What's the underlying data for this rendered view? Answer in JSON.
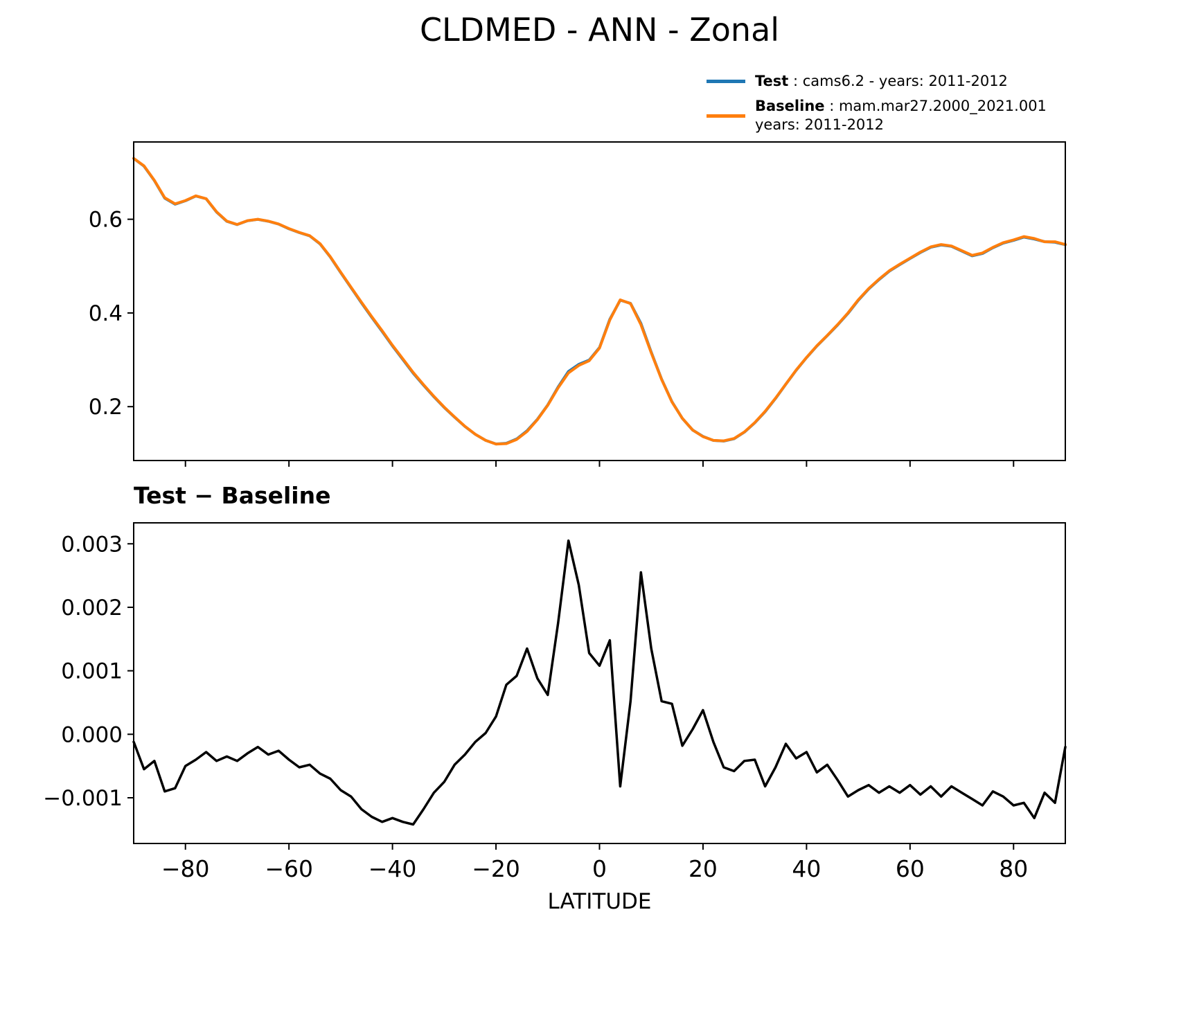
{
  "title": "CLDMED - ANN - Zonal",
  "xlabel": "LATITUDE",
  "legend": {
    "position": "upper right outside axes",
    "items": [
      {
        "name": "Test",
        "desc": ": cams6.2 - years: 2011-2012",
        "color": "#1f77b4"
      },
      {
        "name": "Baseline",
        "desc": ": mam.mar27.2000_2021.001 years: 2011-2012",
        "color": "#ff7f0e"
      }
    ]
  },
  "chart_data": [
    {
      "type": "line",
      "title": "CLDMED - ANN - Zonal",
      "xlabel": "",
      "ylabel": "",
      "xlim": [
        -90,
        90
      ],
      "ylim": [
        0.085,
        0.765
      ],
      "xticks": [
        -80,
        -60,
        -40,
        -20,
        0,
        20,
        40,
        60,
        80
      ],
      "xtick_labels": [
        "−80",
        "−60",
        "−40",
        "−20",
        "0",
        "20",
        "40",
        "60",
        "80"
      ],
      "yticks": [
        0.2,
        0.4,
        0.6
      ],
      "ytick_labels": [
        "0.2",
        "0.4",
        "0.6"
      ],
      "grid": false,
      "x": [
        -90,
        -88,
        -86,
        -84,
        -82,
        -80,
        -78,
        -76,
        -74,
        -72,
        -70,
        -68,
        -66,
        -64,
        -62,
        -60,
        -58,
        -56,
        -54,
        -52,
        -50,
        -48,
        -46,
        -44,
        -42,
        -40,
        -38,
        -36,
        -34,
        -32,
        -30,
        -28,
        -26,
        -24,
        -22,
        -20,
        -18,
        -16,
        -14,
        -12,
        -10,
        -8,
        -6,
        -4,
        -2,
        0,
        2,
        4,
        6,
        8,
        10,
        12,
        14,
        16,
        18,
        20,
        22,
        24,
        26,
        28,
        30,
        32,
        34,
        36,
        38,
        40,
        42,
        44,
        46,
        48,
        50,
        52,
        54,
        56,
        58,
        60,
        62,
        64,
        66,
        68,
        70,
        72,
        74,
        76,
        78,
        80,
        82,
        84,
        86,
        88,
        90
      ],
      "series": [
        {
          "name": "Test",
          "legend_label": "Test : cams6.2 - years: 2011-2012",
          "color": "#1f77b4",
          "values": [
            0.72988,
            0.71345,
            0.68258,
            0.6451,
            0.63215,
            0.6395,
            0.6496,
            0.64372,
            0.61558,
            0.59565,
            0.58858,
            0.5967,
            0.5998,
            0.59568,
            0.58974,
            0.5796,
            0.57148,
            0.56452,
            0.54738,
            0.5193,
            0.48612,
            0.45402,
            0.42182,
            0.3907,
            0.36062,
            0.32968,
            0.30062,
            0.27158,
            0.24582,
            0.22108,
            0.19825,
            0.17752,
            0.15768,
            0.14088,
            0.12802,
            0.12028,
            0.12178,
            0.13092,
            0.14835,
            0.17288,
            0.20362,
            0.24175,
            0.27505,
            0.29035,
            0.29928,
            0.32608,
            0.38648,
            0.42718,
            0.42052,
            0.37755,
            0.31635,
            0.25852,
            0.21048,
            0.17482,
            0.15008,
            0.13638,
            0.12788,
            0.12648,
            0.13142,
            0.14558,
            0.1656,
            0.18918,
            0.21748,
            0.24785,
            0.27762,
            0.30472,
            0.3294,
            0.35152,
            0.37428,
            0.39902,
            0.42712,
            0.4512,
            0.47108,
            0.48918,
            0.50308,
            0.5162,
            0.52905,
            0.54018,
            0.54502,
            0.54218,
            0.53208,
            0.52198,
            0.52688,
            0.5391,
            0.54902,
            0.55488,
            0.56192,
            0.55768,
            0.55208,
            0.55092,
            0.5458
          ]
        },
        {
          "name": "Baseline",
          "legend_label": "Baseline : mam.mar27.2000_2021.001 years: 2011-2012",
          "color": "#ff7f0e",
          "values": [
            0.73,
            0.714,
            0.683,
            0.646,
            0.633,
            0.64,
            0.65,
            0.644,
            0.616,
            0.596,
            0.589,
            0.597,
            0.6,
            0.596,
            0.59,
            0.58,
            0.572,
            0.565,
            0.548,
            0.52,
            0.487,
            0.455,
            0.423,
            0.392,
            0.362,
            0.331,
            0.302,
            0.273,
            0.247,
            0.222,
            0.199,
            0.178,
            0.158,
            0.141,
            0.128,
            0.12,
            0.121,
            0.13,
            0.147,
            0.172,
            0.203,
            0.24,
            0.272,
            0.288,
            0.298,
            0.325,
            0.385,
            0.428,
            0.42,
            0.375,
            0.315,
            0.258,
            0.21,
            0.175,
            0.15,
            0.136,
            0.128,
            0.127,
            0.132,
            0.146,
            0.166,
            0.19,
            0.218,
            0.248,
            0.278,
            0.305,
            0.33,
            0.352,
            0.375,
            0.4,
            0.428,
            0.452,
            0.472,
            0.49,
            0.504,
            0.517,
            0.53,
            0.541,
            0.546,
            0.543,
            0.533,
            0.523,
            0.528,
            0.54,
            0.55,
            0.556,
            0.563,
            0.559,
            0.552,
            0.552,
            0.546
          ]
        }
      ]
    },
    {
      "type": "line",
      "title": "Test − Baseline",
      "xlabel": "LATITUDE",
      "ylabel": "",
      "xlim": [
        -90,
        90
      ],
      "ylim": [
        -0.00172,
        0.00333
      ],
      "xticks": [
        -80,
        -60,
        -40,
        -20,
        0,
        20,
        40,
        60,
        80
      ],
      "xtick_labels": [
        "−80",
        "−60",
        "−40",
        "−20",
        "0",
        "20",
        "40",
        "60",
        "80"
      ],
      "yticks": [
        -0.001,
        0.0,
        0.001,
        0.002,
        0.003
      ],
      "ytick_labels": [
        "−0.001",
        "0.000",
        "0.001",
        "0.002",
        "0.003"
      ],
      "grid": false,
      "x": [
        -90,
        -88,
        -86,
        -84,
        -82,
        -80,
        -78,
        -76,
        -74,
        -72,
        -70,
        -68,
        -66,
        -64,
        -62,
        -60,
        -58,
        -56,
        -54,
        -52,
        -50,
        -48,
        -46,
        -44,
        -42,
        -40,
        -38,
        -36,
        -34,
        -32,
        -30,
        -28,
        -26,
        -24,
        -22,
        -20,
        -18,
        -16,
        -14,
        -12,
        -10,
        -8,
        -6,
        -4,
        -2,
        0,
        2,
        4,
        6,
        8,
        10,
        12,
        14,
        16,
        18,
        20,
        22,
        24,
        26,
        28,
        30,
        32,
        34,
        36,
        38,
        40,
        42,
        44,
        46,
        48,
        50,
        52,
        54,
        56,
        58,
        60,
        62,
        64,
        66,
        68,
        70,
        72,
        74,
        76,
        78,
        80,
        82,
        84,
        86,
        88,
        90
      ],
      "series": [
        {
          "name": "Test minus Baseline",
          "color": "#000000",
          "values": [
            -0.00012,
            -0.00055,
            -0.00042,
            -0.0009,
            -0.00085,
            -0.0005,
            -0.0004,
            -0.00028,
            -0.00042,
            -0.00035,
            -0.00042,
            -0.0003,
            -0.0002,
            -0.00032,
            -0.00026,
            -0.0004,
            -0.00052,
            -0.00048,
            -0.00062,
            -0.0007,
            -0.00088,
            -0.00098,
            -0.00118,
            -0.0013,
            -0.00138,
            -0.00132,
            -0.00138,
            -0.00142,
            -0.00118,
            -0.00092,
            -0.00075,
            -0.00048,
            -0.00032,
            -0.00012,
            2e-05,
            0.00028,
            0.00078,
            0.00092,
            0.00135,
            0.00088,
            0.00062,
            0.00175,
            0.00305,
            0.00235,
            0.00128,
            0.00108,
            0.00148,
            -0.00082,
            0.00052,
            0.00255,
            0.00135,
            0.00052,
            0.00048,
            -0.00018,
            8e-05,
            0.00038,
            -0.00012,
            -0.00052,
            -0.00058,
            -0.00042,
            -0.0004,
            -0.00082,
            -0.00052,
            -0.00015,
            -0.00038,
            -0.00028,
            -0.0006,
            -0.00048,
            -0.00072,
            -0.00098,
            -0.00088,
            -0.0008,
            -0.00092,
            -0.00082,
            -0.00092,
            -0.0008,
            -0.00095,
            -0.00082,
            -0.00098,
            -0.00082,
            -0.00092,
            -0.00102,
            -0.00112,
            -0.0009,
            -0.00098,
            -0.00112,
            -0.00108,
            -0.00132,
            -0.00092,
            -0.00108,
            -0.0002
          ]
        }
      ]
    }
  ]
}
